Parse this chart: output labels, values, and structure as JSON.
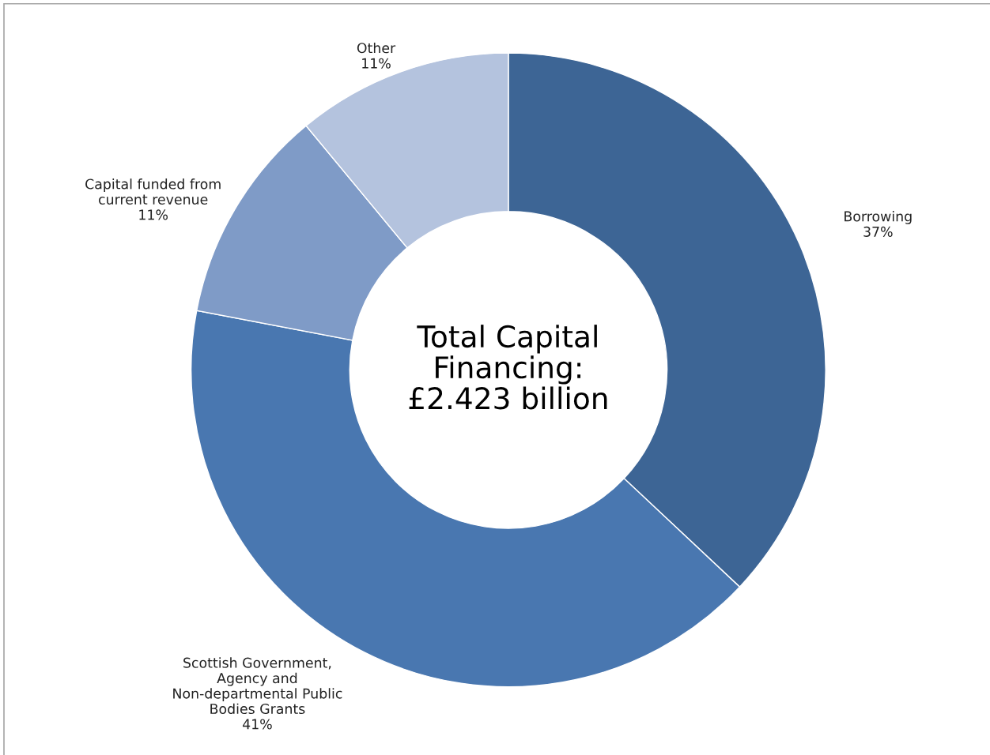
{
  "chart_data": {
    "type": "donut",
    "categories": [
      "Borrowing",
      "Scottish Government, Agency and Non-departmental Public Bodies Grants",
      "Capital funded from current revenue",
      "Other"
    ],
    "values": [
      37,
      41,
      11,
      11
    ],
    "colors": [
      "#3d6595",
      "#4977b0",
      "#7f9bc7",
      "#b4c3de"
    ],
    "value_labels": [
      "37%",
      "41%",
      "11%",
      "11%"
    ],
    "annotations": [
      "Total Capital Financing: £2.423 billion"
    ]
  }
}
